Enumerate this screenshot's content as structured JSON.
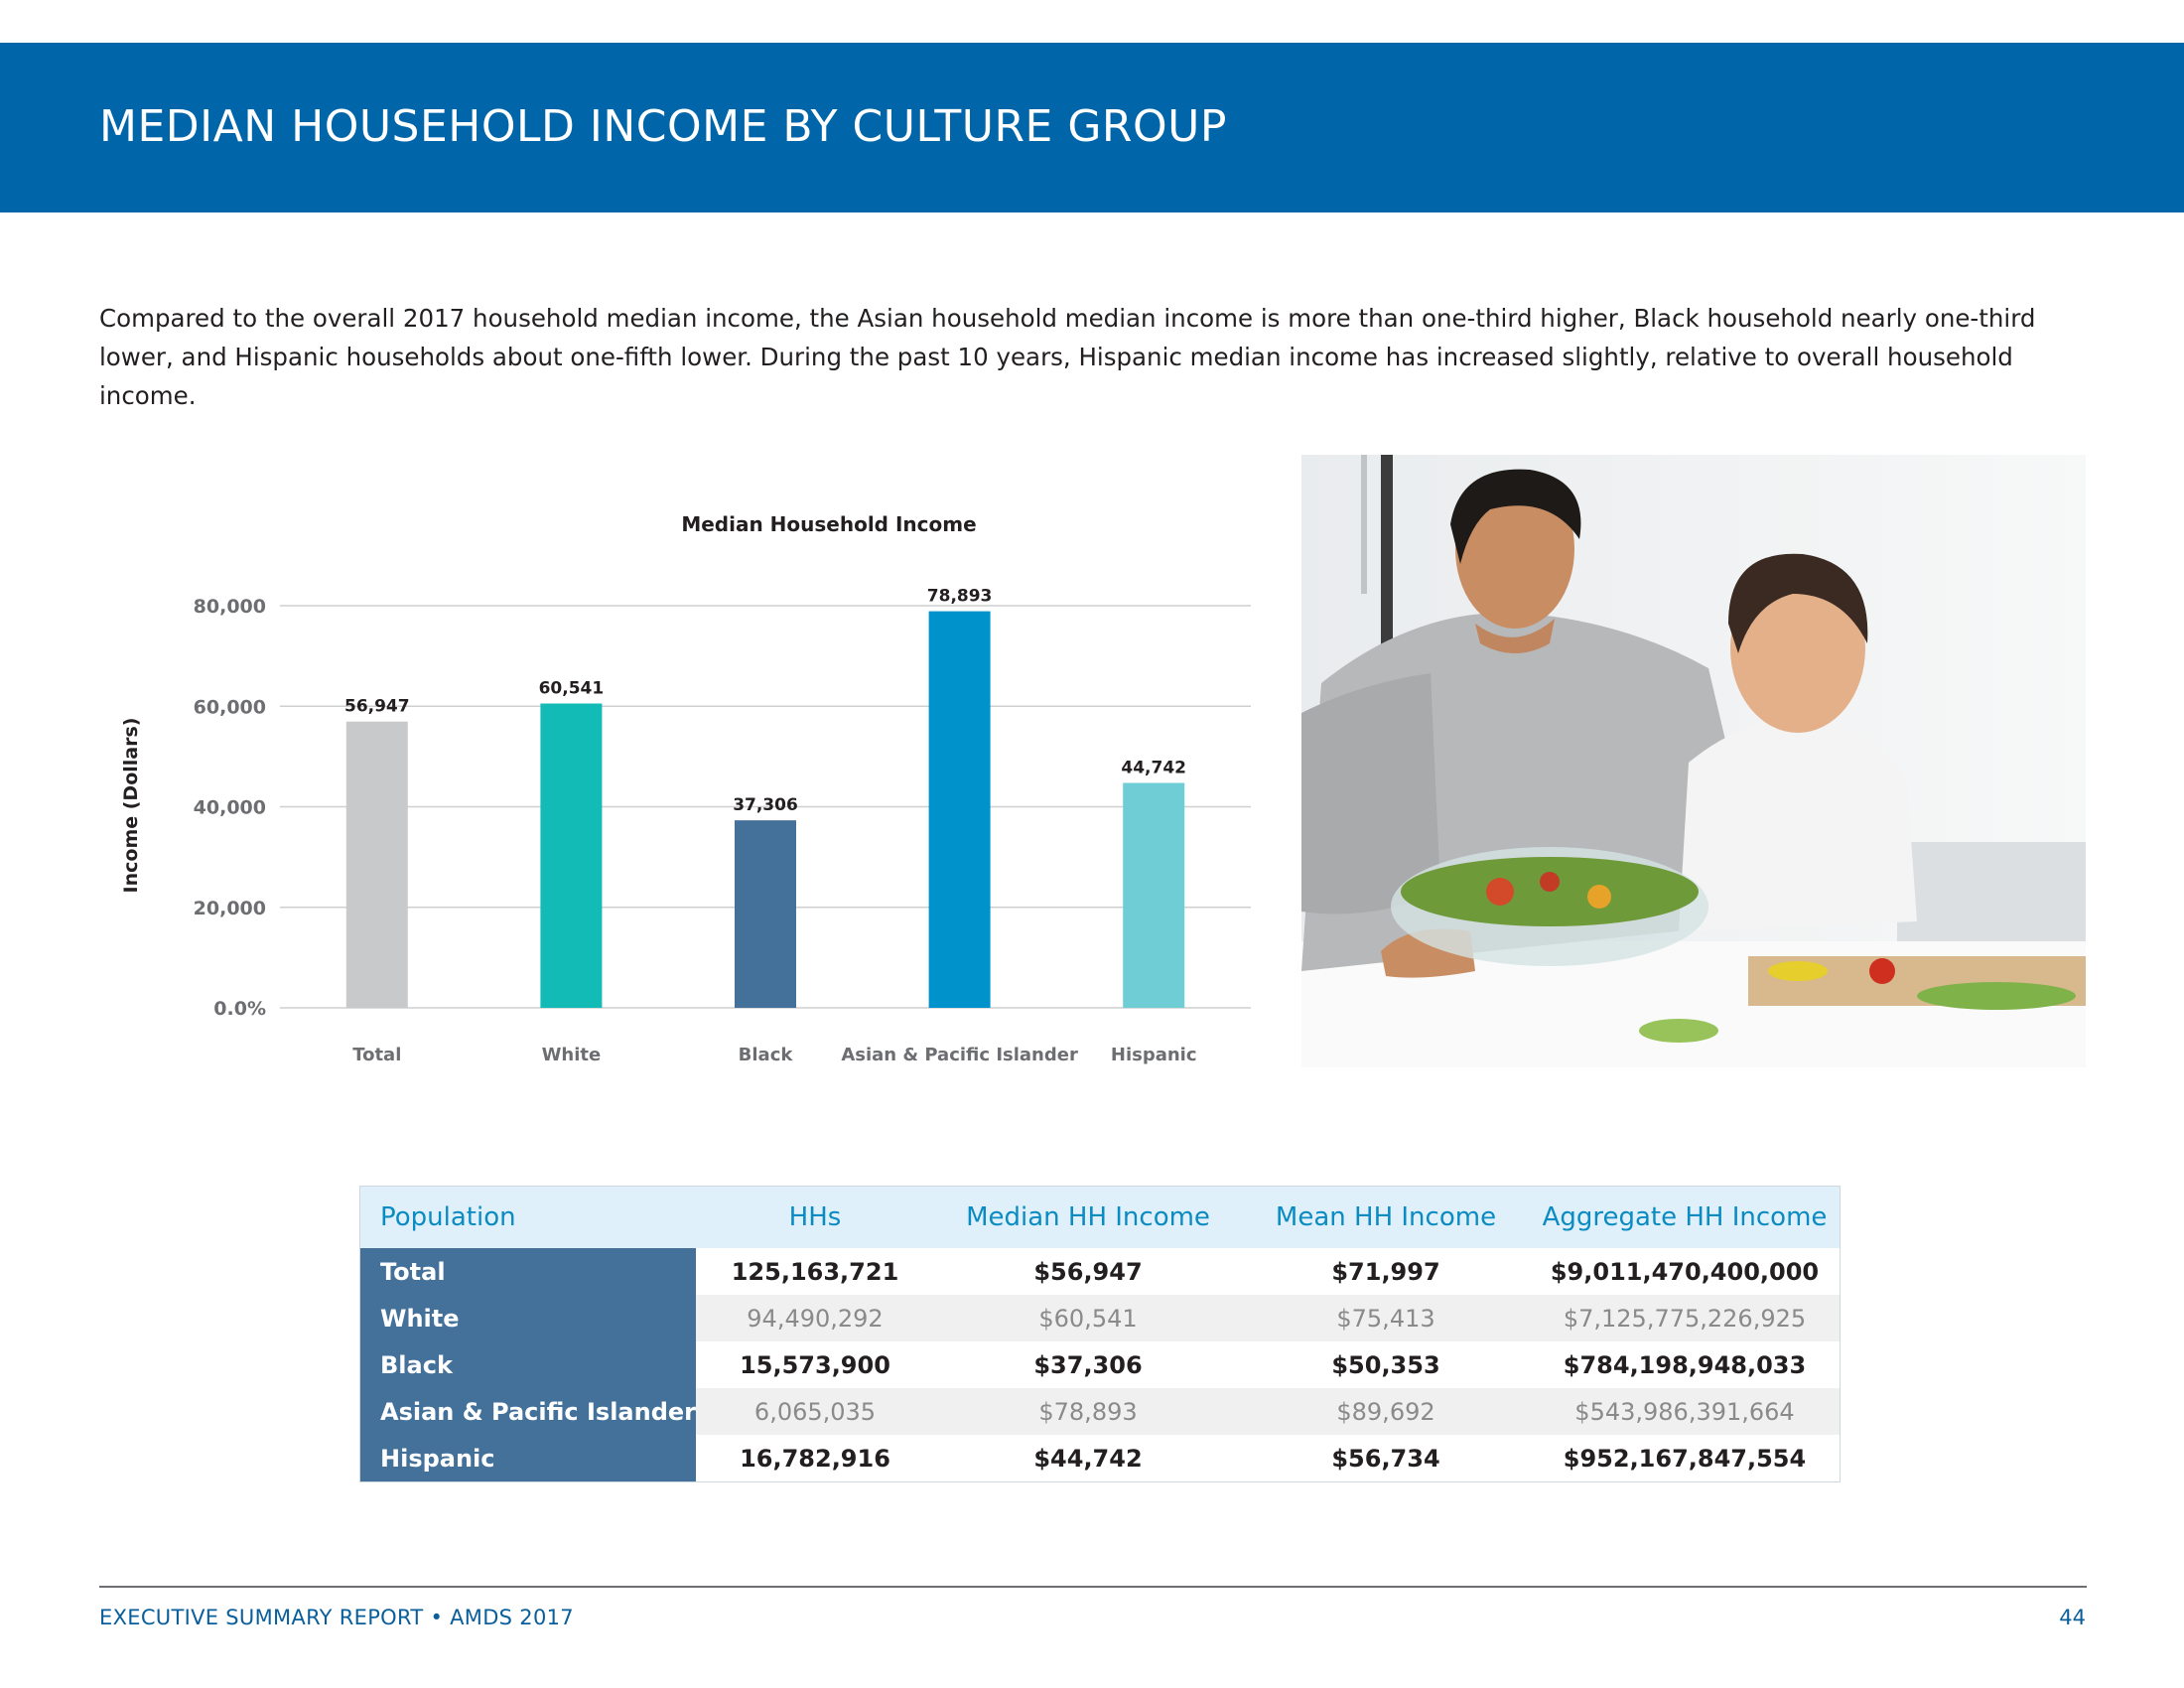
{
  "header": {
    "title": "MEDIAN HOUSEHOLD INCOME BY CULTURE GROUP"
  },
  "intro": "Compared to the overall 2017 household median income, the Asian household median income is more than one-third higher, Black household nearly one-third lower, and Hispanic households about one-fifth lower. During the past 10 years, Hispanic median income has increased slightly, relative to overall household income.",
  "chart_data": {
    "type": "bar",
    "title": "Median Household Income",
    "xlabel": "",
    "ylabel": "Income (Dollars)",
    "categories": [
      "Total",
      "White",
      "Black",
      "Asian & Pacific Islander",
      "Hispanic"
    ],
    "values": [
      56947,
      60541,
      37306,
      78893,
      44742
    ],
    "value_labels": [
      "56,947",
      "60,541",
      "37,306",
      "78,893",
      "44,742"
    ],
    "colors": [
      "#c8c9ca",
      "#13bbb7",
      "#44719a",
      "#0093cb",
      "#6fcdd6"
    ],
    "ylim": [
      0,
      80000
    ],
    "yticks": [
      0,
      20000,
      40000,
      60000,
      80000
    ],
    "ytick_labels": [
      "0.0%",
      "20,000",
      "40,000",
      "60,000",
      "80,000"
    ],
    "grid": true
  },
  "photo": {
    "description_icon": "photo-father-son-salad"
  },
  "table": {
    "headers": [
      "Population",
      "HHs",
      "Median HH Income",
      "Mean HH Income",
      "Aggregate HH Income"
    ],
    "rows": [
      [
        "Total",
        "125,163,721",
        "$56,947",
        "$71,997",
        "$9,011,470,400,000"
      ],
      [
        "White",
        "94,490,292",
        "$60,541",
        "$75,413",
        "$7,125,775,226,925"
      ],
      [
        "Black",
        "15,573,900",
        "$37,306",
        "$50,353",
        "$784,198,948,033"
      ],
      [
        "Asian & Pacific Islander",
        "6,065,035",
        "$78,893",
        "$89,692",
        "$543,986,391,664"
      ],
      [
        "Hispanic",
        "16,782,916",
        "$44,742",
        "$56,734",
        "$952,167,847,554"
      ]
    ]
  },
  "footer": {
    "left": "EXECUTIVE SUMMARY REPORT  •  AMDS 2017",
    "page": "44"
  },
  "colors": {
    "brand_blue": "#0065a9",
    "row_label": "#44719a",
    "header_text": "#0a8bc2"
  }
}
